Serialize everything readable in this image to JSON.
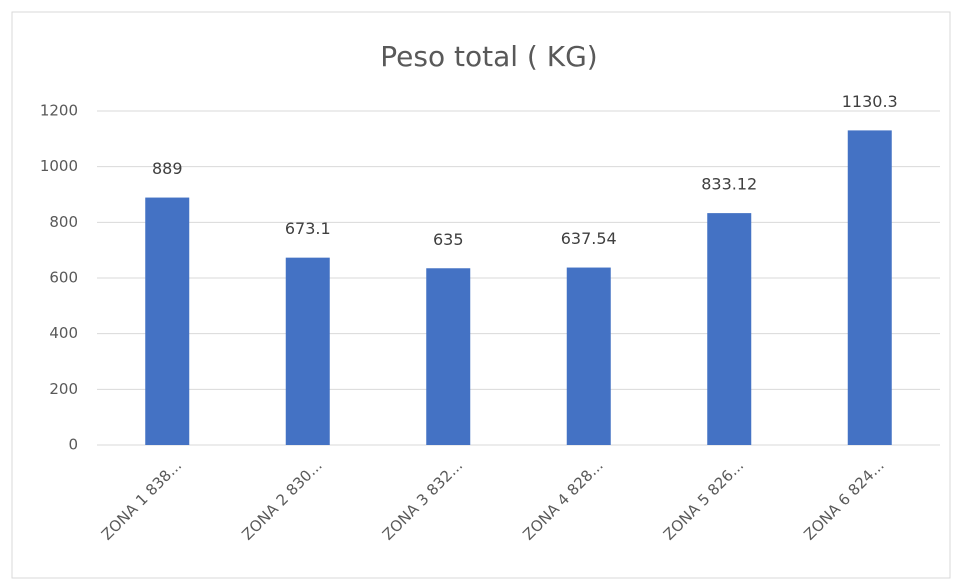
{
  "chart_data": {
    "type": "bar",
    "title": "Peso total ( KG)",
    "categories": [
      "ZONA 1 838...",
      "ZONA 2 830...",
      "ZONA 3  832...",
      "ZONA 4  828...",
      "ZONA 5  826...",
      "ZONA 6  824..."
    ],
    "values": [
      889,
      673.1,
      635,
      637.54,
      833.12,
      1130.3
    ],
    "color": "#4472c4",
    "ylim": [
      0,
      1200
    ],
    "yticks": [
      0,
      200,
      400,
      600,
      800,
      1000,
      1200
    ],
    "grid": true
  }
}
